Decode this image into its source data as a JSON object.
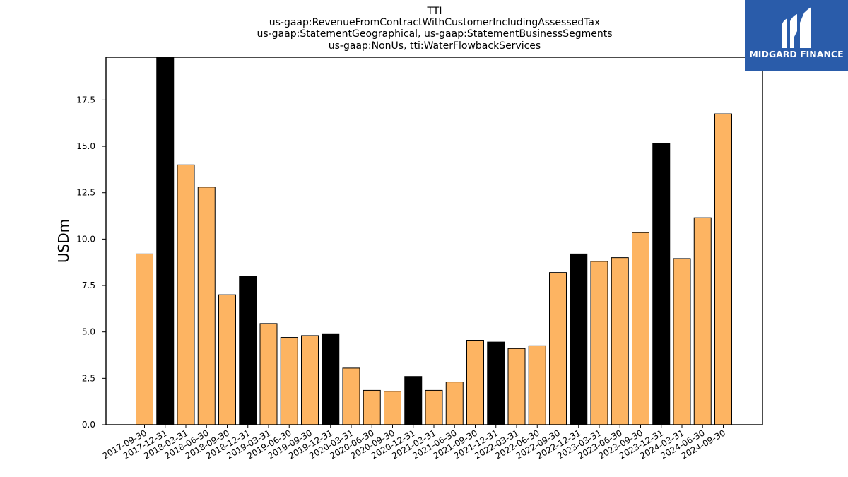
{
  "chart_data": {
    "type": "bar",
    "title_lines": [
      "TTI",
      "us-gaap:RevenueFromContractWithCustomerIncludingAssessedTax",
      "us-gaap:StatementGeographical, us-gaap:StatementBusinessSegments",
      "us-gaap:NonUs, tti:WaterFlowbackServices"
    ],
    "ylabel": "USDm",
    "xlabel": "",
    "ylim": [
      0,
      19.8
    ],
    "yticks": [
      0.0,
      2.5,
      5.0,
      7.5,
      10.0,
      12.5,
      15.0,
      17.5
    ],
    "ytick_labels": [
      "0.0",
      "2.5",
      "5.0",
      "7.5",
      "10.0",
      "12.5",
      "15.0",
      "17.5"
    ],
    "categories": [
      "2017-09-30",
      "2017-12-31",
      "2018-03-31",
      "2018-06-30",
      "2018-09-30",
      "2018-12-31",
      "2019-03-31",
      "2019-06-30",
      "2019-09-30",
      "2019-12-31",
      "2020-03-31",
      "2020-06-30",
      "2020-09-30",
      "2020-12-31",
      "2021-03-31",
      "2021-06-30",
      "2021-09-30",
      "2021-12-31",
      "2022-03-31",
      "2022-06-30",
      "2022-09-30",
      "2022-12-31",
      "2023-03-31",
      "2023-06-30",
      "2023-09-30",
      "2023-12-31",
      "2024-03-31",
      "2024-06-30",
      "2024-09-30"
    ],
    "values": [
      9.2,
      19.8,
      14.0,
      12.8,
      7.0,
      8.0,
      5.45,
      4.7,
      4.8,
      4.9,
      3.05,
      1.85,
      1.8,
      2.6,
      1.85,
      2.3,
      4.55,
      4.45,
      4.1,
      4.25,
      8.2,
      9.2,
      8.8,
      9.0,
      10.35,
      15.15,
      8.95,
      11.15,
      16.75
    ],
    "bar_colors": [
      "#fdb462",
      "#000000",
      "#fdb462",
      "#fdb462",
      "#fdb462",
      "#000000",
      "#fdb462",
      "#fdb462",
      "#fdb462",
      "#000000",
      "#fdb462",
      "#fdb462",
      "#fdb462",
      "#000000",
      "#fdb462",
      "#fdb462",
      "#fdb462",
      "#000000",
      "#fdb462",
      "#fdb462",
      "#fdb462",
      "#000000",
      "#fdb462",
      "#fdb462",
      "#fdb462",
      "#000000",
      "#fdb462",
      "#fdb462",
      "#fdb462"
    ],
    "grid": false,
    "legend": "none"
  },
  "logo": {
    "text": "MIDGARD FINANCE",
    "background": "#2a5caa"
  }
}
